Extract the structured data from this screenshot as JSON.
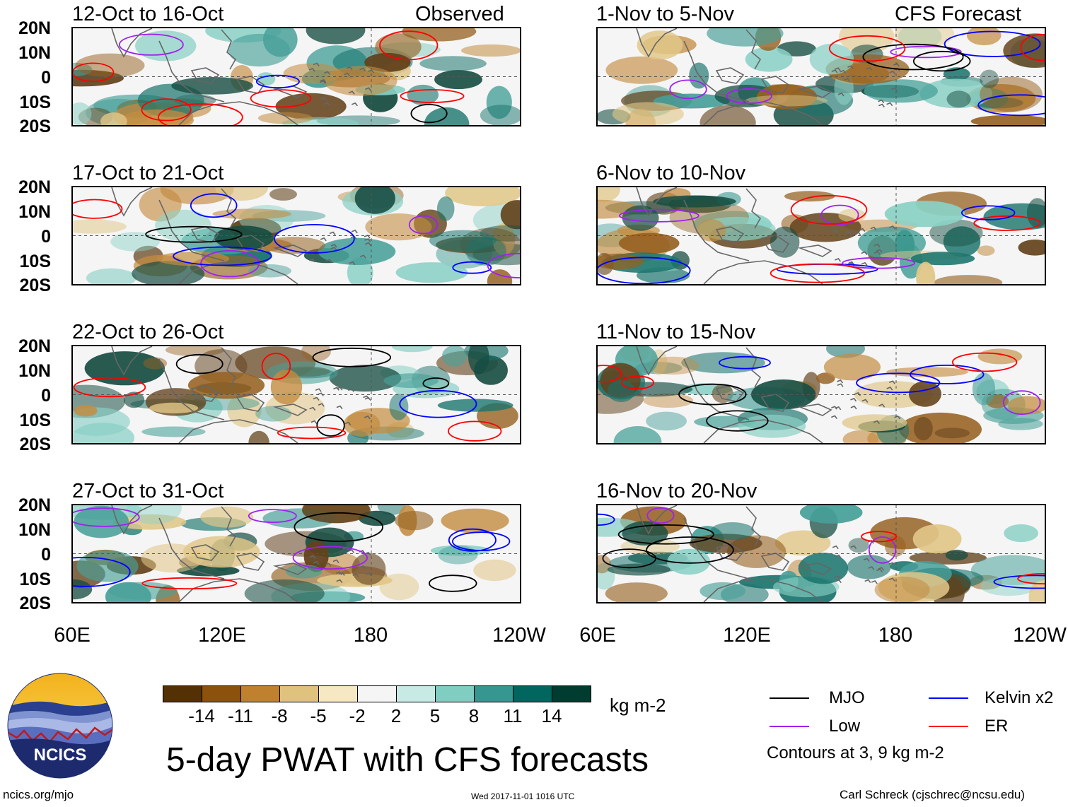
{
  "header": {
    "left_label": "Observed",
    "right_label": "CFS Forecast"
  },
  "panels_observed": [
    {
      "title": "12-Oct to 16-Oct"
    },
    {
      "title": "17-Oct to 21-Oct"
    },
    {
      "title": "22-Oct to 26-Oct"
    },
    {
      "title": "27-Oct to 31-Oct"
    }
  ],
  "panels_forecast": [
    {
      "title": "1-Nov to 5-Nov"
    },
    {
      "title": "6-Nov to 10-Nov"
    },
    {
      "title": "11-Nov to 15-Nov"
    },
    {
      "title": "16-Nov to 20-Nov"
    }
  ],
  "lat_labels": [
    "20N",
    "10N",
    "0",
    "10S",
    "20S"
  ],
  "lon_labels": [
    "60E",
    "120E",
    "180",
    "120W"
  ],
  "colorbar": {
    "labels": [
      "-14",
      "-11",
      "-8",
      "-5",
      "-2",
      "2",
      "5",
      "8",
      "11",
      "14"
    ],
    "colors": [
      "#543005",
      "#8c510a",
      "#bf812d",
      "#dfc27d",
      "#f6e8c3",
      "#f5f5f5",
      "#c7eae5",
      "#80cdc1",
      "#35978f",
      "#01665e",
      "#003c30"
    ],
    "units": "kg m-2"
  },
  "title": "5-day PWAT with CFS forecasts",
  "legend": {
    "items": [
      {
        "label": "MJO",
        "color": "#000000"
      },
      {
        "label": "Kelvin x2",
        "color": "#0000ff"
      },
      {
        "label": "Low",
        "color": "#a020f0"
      },
      {
        "label": "ER",
        "color": "#ff0000"
      }
    ],
    "note": "Contours at 3, 9 kg m-2"
  },
  "logo_text": "NCICS",
  "footer": {
    "left": "ncics.org/mjo",
    "center": "Wed 2017-11-01 1016 UTC",
    "right": "Carl Schreck (cjschrec@ncsu.edu)"
  }
}
